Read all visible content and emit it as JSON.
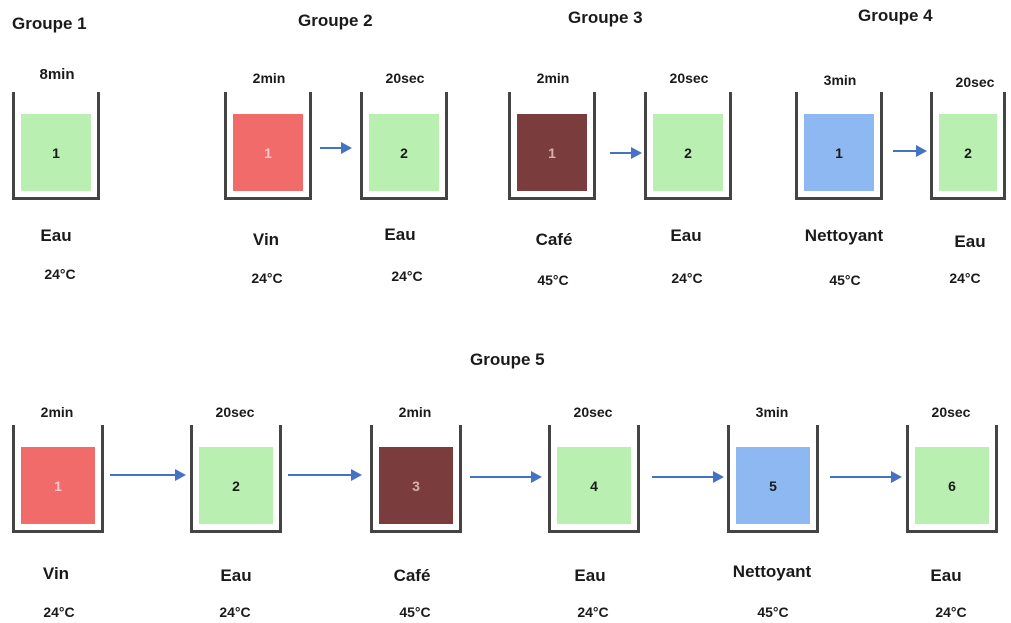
{
  "colors": {
    "eau": "#b9efb0",
    "vin": "#f26b6b",
    "cafe": "#7a3c3c",
    "nettoyant": "#8db8f2",
    "arrow": "#4472c4"
  },
  "groups": {
    "g1": {
      "title": "Groupe 1",
      "beakers": [
        {
          "time": "8min",
          "number": "1",
          "liquid": "Eau",
          "temp": "24°C"
        }
      ]
    },
    "g2": {
      "title": "Groupe 2",
      "beakers": [
        {
          "time": "2min",
          "number": "1",
          "liquid": "Vin",
          "temp": "24°C"
        },
        {
          "time": "20sec",
          "number": "2",
          "liquid": "Eau",
          "temp": "24°C"
        }
      ]
    },
    "g3": {
      "title": "Groupe 3",
      "beakers": [
        {
          "time": "2min",
          "number": "1",
          "liquid": "Café",
          "temp": "45°C"
        },
        {
          "time": "20sec",
          "number": "2",
          "liquid": "Eau",
          "temp": "24°C"
        }
      ]
    },
    "g4": {
      "title": "Groupe 4",
      "beakers": [
        {
          "time": "3min",
          "number": "1",
          "liquid": "Nettoyant",
          "temp": "45°C"
        },
        {
          "time": "20sec",
          "number": "2",
          "liquid": "Eau",
          "temp": "24°C"
        }
      ]
    },
    "g5": {
      "title": "Groupe 5",
      "beakers": [
        {
          "time": "2min",
          "number": "1",
          "liquid": "Vin",
          "temp": "24°C"
        },
        {
          "time": "20sec",
          "number": "2",
          "liquid": "Eau",
          "temp": "24°C"
        },
        {
          "time": "2min",
          "number": "3",
          "liquid": "Café",
          "temp": "45°C"
        },
        {
          "time": "20sec",
          "number": "4",
          "liquid": "Eau",
          "temp": "24°C"
        },
        {
          "time": "3min",
          "number": "5",
          "liquid": "Nettoyant",
          "temp": "45°C"
        },
        {
          "time": "20sec",
          "number": "6",
          "liquid": "Eau",
          "temp": "24°C"
        }
      ]
    }
  }
}
